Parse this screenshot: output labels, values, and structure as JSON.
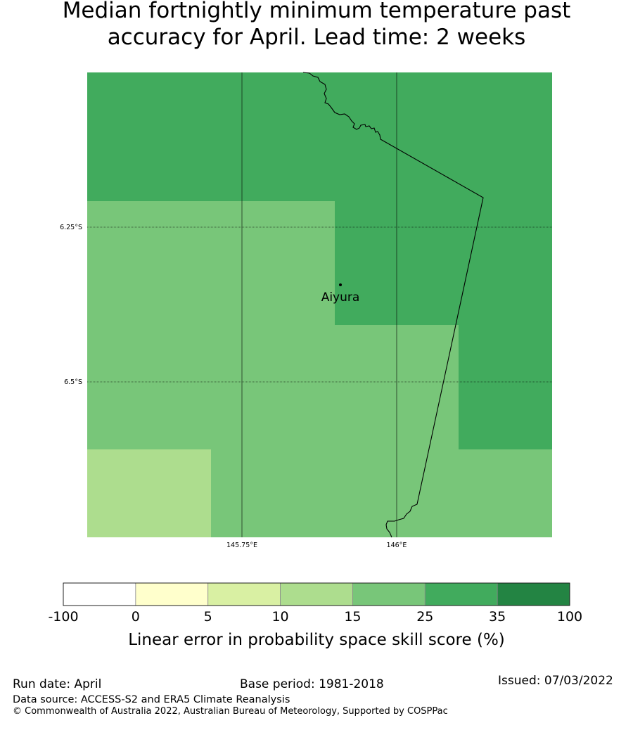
{
  "title": {
    "line1": "Median fortnightly minimum temperature past",
    "line2": "accuracy for April. Lead time: 2 weeks"
  },
  "map": {
    "lat_range": [
      "6.0°S",
      "6.75°S"
    ],
    "lon_range": [
      "145.5°E",
      "146.25°E"
    ],
    "lat_ticks": [
      "6.25°S",
      "6.5°S"
    ],
    "lon_ticks": [
      "145.75°E",
      "146°E"
    ],
    "location": {
      "name": "Aiyura"
    },
    "grid": "on",
    "cells": [
      {
        "category": "25-35",
        "color": "#41ab5d"
      },
      {
        "category": "15-25",
        "color": "#78c679"
      },
      {
        "category": "10-15",
        "color": "#addd8e"
      }
    ]
  },
  "colorbar": {
    "tick_labels": [
      "-100",
      "0",
      "5",
      "10",
      "15",
      "25",
      "35",
      "100"
    ],
    "colors": [
      "#ffffff",
      "#ffffcc",
      "#d9f0a3",
      "#addd8e",
      "#78c679",
      "#41ab5d",
      "#238443"
    ],
    "label": "Linear error in probability space skill score (%)"
  },
  "footer": {
    "run_date": "Run date: April",
    "base_period": "Base period: 1981-2018",
    "issued": "Issued: 07/03/2022",
    "data_source": "Data source: ACCESS-S2 and ERA5 Climate Reanalysis",
    "copyright": "© Commonwealth of Australia 2022, Australian Bureau of Meteorology, Supported by COSPPac"
  }
}
